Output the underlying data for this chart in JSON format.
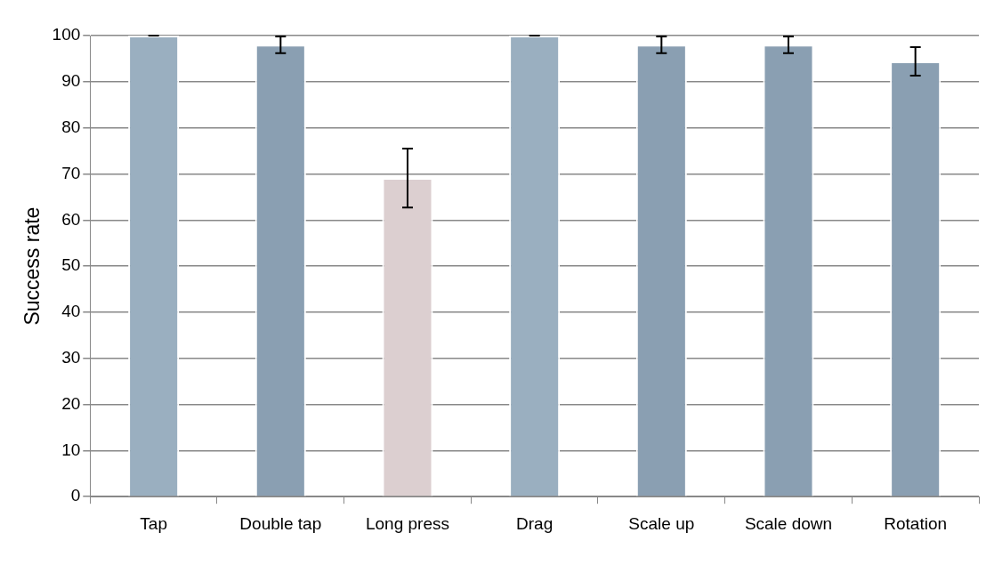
{
  "chart_data": {
    "type": "bar",
    "ylabel": "Success rate",
    "categories": [
      "Tap",
      "Double tap",
      "Long press",
      "Drag",
      "Scale up",
      "Scale down",
      "Rotation"
    ],
    "values": [
      100,
      98,
      69.1,
      100,
      98,
      98,
      94.4
    ],
    "errors": [
      0,
      1.8,
      6.4,
      0,
      1.8,
      1.8,
      3.1
    ],
    "colors": [
      "#9aafc0",
      "#8a9fb2",
      "#dccfd0",
      "#9aafc0",
      "#8a9fb2",
      "#8a9fb2",
      "#8a9fb2"
    ],
    "ylim": [
      0,
      100
    ],
    "yticks": [
      0,
      10,
      20,
      30,
      40,
      50,
      60,
      70,
      80,
      90,
      100
    ],
    "grid": "y",
    "legend": false
  }
}
